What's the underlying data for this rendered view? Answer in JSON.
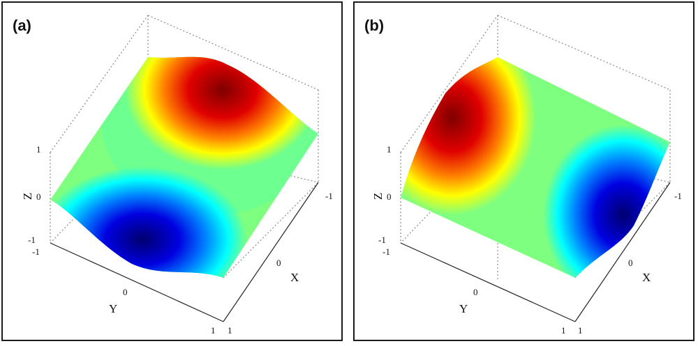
{
  "panels": [
    {
      "id": "a",
      "label": "(a)",
      "axes": {
        "x_label": "X",
        "y_label": "Y",
        "z_label": "Z",
        "x_ticks": [
          "-1",
          "0",
          "1"
        ],
        "y_ticks": [
          "-1",
          "0",
          "1"
        ],
        "z_ticks": [
          "-1",
          "0",
          "1"
        ]
      },
      "peak": {
        "color": "dark-red",
        "location": "upper-right"
      },
      "trough": {
        "color": "dark-blue",
        "location": "lower-left"
      }
    },
    {
      "id": "b",
      "label": "(b)",
      "axes": {
        "x_label": "X",
        "y_label": "Y",
        "z_label": "Z",
        "x_ticks": [
          "-1",
          "0",
          "1"
        ],
        "y_ticks": [
          "-1",
          "0",
          "1"
        ],
        "z_ticks": [
          "-1",
          "0",
          "1"
        ]
      },
      "peak": {
        "color": "dark-red",
        "location": "upper-left"
      },
      "trough": {
        "color": "dark-blue",
        "location": "lower-right"
      }
    }
  ],
  "colormap": [
    "#00007f",
    "#0000ff",
    "#00ffff",
    "#7fff7f",
    "#ffff00",
    "#ff0000",
    "#7f0000"
  ]
}
